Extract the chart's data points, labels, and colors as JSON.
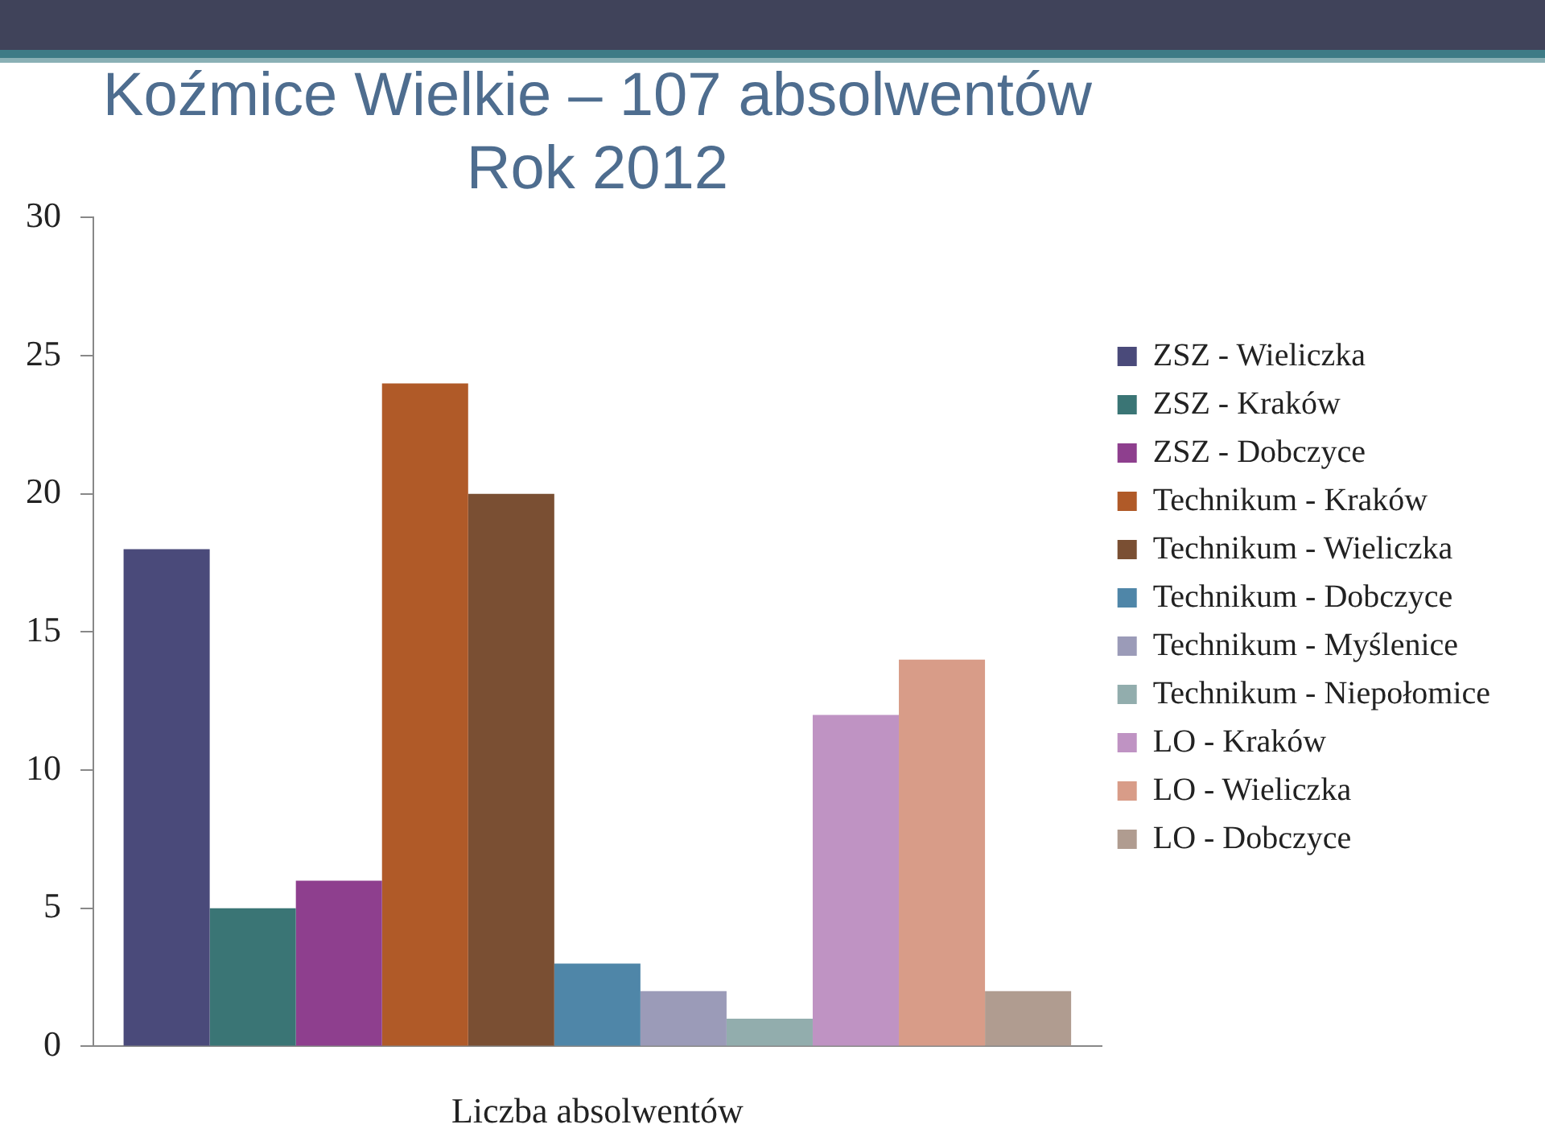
{
  "chart_data": {
    "type": "bar",
    "title": [
      "Koźmice Wielkie – 107 absolwentów",
      "Rok 2012"
    ],
    "xlabel": "Liczba absolwentów",
    "categories": [
      null
    ],
    "series": [
      {
        "name": "ZSZ - Wieliczka",
        "color": "#4a4a7a",
        "values": [
          18
        ]
      },
      {
        "name": "ZSZ - Kraków",
        "color": "#3a7575",
        "values": [
          5
        ]
      },
      {
        "name": "ZSZ - Dobczyce",
        "color": "#8e3f8e",
        "values": [
          6
        ]
      },
      {
        "name": "Technikum - Kraków",
        "color": "#b05a28",
        "values": [
          24
        ]
      },
      {
        "name": "Technikum - Wieliczka",
        "color": "#7a4f33",
        "values": [
          20
        ]
      },
      {
        "name": "Technikum - Dobczyce",
        "color": "#4f86a8",
        "values": [
          3
        ]
      },
      {
        "name": "Technikum - Myślenice",
        "color": "#9b9bb8",
        "values": [
          2
        ]
      },
      {
        "name": "Technikum - Niepołomice",
        "color": "#92adad",
        "values": [
          1
        ]
      },
      {
        "name": "LO - Kraków",
        "color": "#bf93c3",
        "values": [
          12
        ]
      },
      {
        "name": "LO - Wieliczka",
        "color": "#d89c88",
        "values": [
          14
        ]
      },
      {
        "name": "LO - Dobczyce",
        "color": "#b09c90",
        "values": [
          2
        ]
      }
    ],
    "ylim": [
      0,
      30
    ],
    "yticks": [
      0,
      5,
      10,
      15,
      20,
      25,
      30
    ],
    "grid": false,
    "legend": "right"
  }
}
